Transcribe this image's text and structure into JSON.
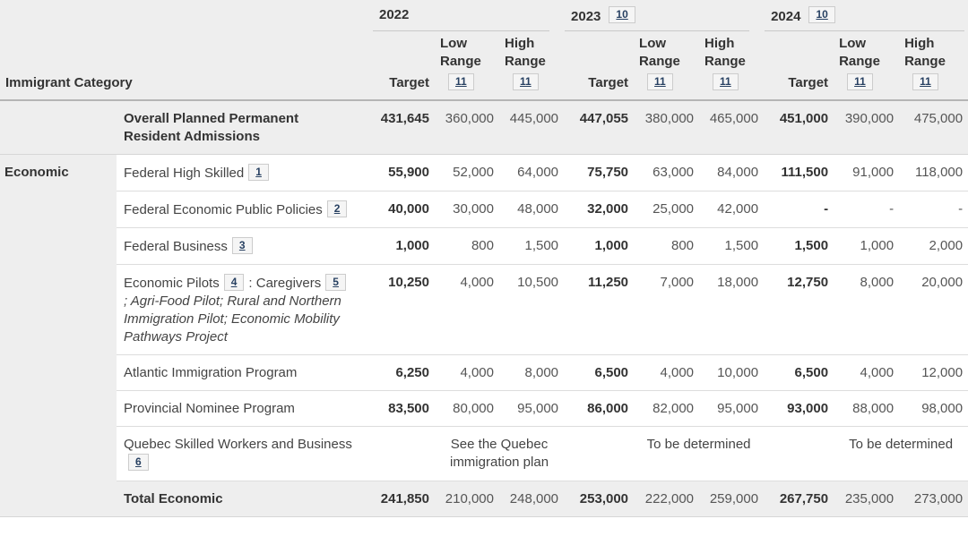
{
  "colors": {
    "link_blue": "#284162",
    "header_bg": "#eeeeee",
    "shaded_row_bg": "#eeeeee",
    "divider_grey": "#b5b5b5"
  },
  "table": {
    "category_header": "Immigrant Category",
    "year_groups": [
      {
        "year": "2022",
        "footnote": ""
      },
      {
        "year": "2023",
        "footnote": "10"
      },
      {
        "year": "2024",
        "footnote": "10"
      }
    ],
    "sub_headers": {
      "target": "Target",
      "low_range": "Low Range",
      "high_range": "High Range",
      "range_footnote": "11"
    },
    "rows": [
      {
        "style": "summary",
        "category": {
          "label": "",
          "rowspan": 1
        },
        "program": [
          {
            "t": "text",
            "v": "Overall Planned Permanent Resident Admissions"
          }
        ],
        "values": [
          "431,645",
          "360,000",
          "445,000",
          "447,055",
          "380,000",
          "465,000",
          "451,000",
          "390,000",
          "475,000"
        ]
      },
      {
        "style": "normal",
        "category": {
          "label": "Economic",
          "rowspan": 7
        },
        "program": [
          {
            "t": "text",
            "v": "Federal High Skilled"
          },
          {
            "t": "fn",
            "v": "1"
          }
        ],
        "values": [
          "55,900",
          "52,000",
          "64,000",
          "75,750",
          "63,000",
          "84,000",
          "111,500",
          "91,000",
          "118,000"
        ]
      },
      {
        "style": "normal",
        "category": null,
        "program": [
          {
            "t": "text",
            "v": "Federal Economic Public Policies"
          },
          {
            "t": "fn",
            "v": "2"
          }
        ],
        "values": [
          "40,000",
          "30,000",
          "48,000",
          "32,000",
          "25,000",
          "42,000",
          "-",
          "-",
          "-"
        ]
      },
      {
        "style": "normal",
        "category": null,
        "program": [
          {
            "t": "text",
            "v": "Federal Business"
          },
          {
            "t": "fn",
            "v": "3"
          }
        ],
        "values": [
          "1,000",
          "800",
          "1,500",
          "1,000",
          "800",
          "1,500",
          "1,500",
          "1,000",
          "2,000"
        ]
      },
      {
        "style": "normal",
        "category": null,
        "program": [
          {
            "t": "text",
            "v": "Economic Pilots"
          },
          {
            "t": "fn",
            "v": "4"
          },
          {
            "t": "text",
            "v": ": Caregivers"
          },
          {
            "t": "fn",
            "v": "5"
          },
          {
            "t": "i",
            "v": "; Agri-Food Pilot; Rural and Northern Immigration Pilot; Economic Mobility Pathways Project"
          }
        ],
        "values": [
          "10,250",
          "4,000",
          "10,500",
          "11,250",
          "7,000",
          "18,000",
          "12,750",
          "8,000",
          "20,000"
        ]
      },
      {
        "style": "normal",
        "category": null,
        "program": [
          {
            "t": "text",
            "v": "Atlantic Immigration Program"
          }
        ],
        "values": [
          "6,250",
          "4,000",
          "8,000",
          "6,500",
          "4,000",
          "10,000",
          "6,500",
          "4,000",
          "12,000"
        ]
      },
      {
        "style": "normal",
        "category": null,
        "program": [
          {
            "t": "text",
            "v": "Provincial Nominee Program"
          }
        ],
        "values": [
          "83,500",
          "80,000",
          "95,000",
          "86,000",
          "82,000",
          "95,000",
          "93,000",
          "88,000",
          "98,000"
        ]
      },
      {
        "style": "normal",
        "category": null,
        "program": [
          {
            "t": "text",
            "v": "Quebec Skilled Workers and Business"
          },
          {
            "t": "fn",
            "v": "6"
          }
        ],
        "spans": [
          "See the Quebec immigration plan",
          "To be determined",
          "To be determined"
        ]
      },
      {
        "style": "summary",
        "category": {
          "label": "",
          "rowspan": 1
        },
        "program": [
          {
            "t": "text",
            "v": "Total Economic"
          }
        ],
        "values": [
          "241,850",
          "210,000",
          "248,000",
          "253,000",
          "222,000",
          "259,000",
          "267,750",
          "235,000",
          "273,000"
        ]
      }
    ]
  }
}
